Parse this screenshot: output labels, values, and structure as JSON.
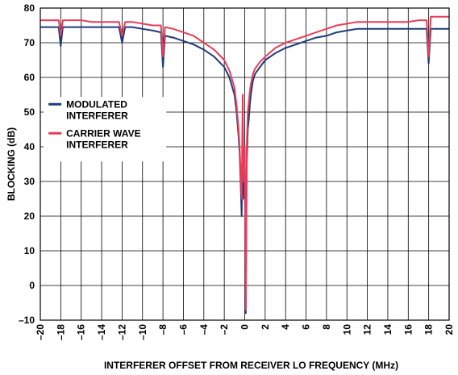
{
  "chart_data": {
    "type": "line",
    "title": "",
    "xlabel": "INTERFERER OFFSET FROM RECEIVER LO FREQUENCY (MHz)",
    "ylabel": "BLOCKING (dB)",
    "xlim": [
      -20,
      20
    ],
    "ylim": [
      -10,
      80
    ],
    "grid": true,
    "legend_position": "upper-left",
    "x_ticks": [
      -20,
      -18,
      -16,
      -14,
      -12,
      -10,
      -8,
      -6,
      -4,
      -2,
      0,
      2,
      4,
      6,
      8,
      10,
      12,
      14,
      16,
      18,
      20
    ],
    "x_tick_labels": [
      "–20",
      "–18",
      "–16",
      "–14",
      "–12",
      "–10",
      "–8",
      "–6",
      "–4",
      "–2",
      "0",
      "2",
      "4",
      "6",
      "8",
      "10",
      "12",
      "14",
      "16",
      "18",
      "20"
    ],
    "y_ticks": [
      -10,
      0,
      10,
      20,
      30,
      40,
      50,
      60,
      70,
      80
    ],
    "y_tick_labels": [
      "–10",
      "0",
      "10",
      "20",
      "30",
      "40",
      "50",
      "60",
      "70",
      "80"
    ],
    "series": [
      {
        "name": "MODULATED INTERFERER",
        "color": "#1f3a7a",
        "x": [
          -20,
          -19,
          -18.2,
          -18,
          -17.8,
          -17,
          -16,
          -15,
          -14,
          -13,
          -12.3,
          -12,
          -11.7,
          -11,
          -10,
          -9,
          -8.2,
          -8,
          -7.8,
          -7,
          -6,
          -5,
          -4,
          -3,
          -2,
          -1.5,
          -1,
          -0.8,
          -0.6,
          -0.5,
          -0.4,
          -0.3,
          -0.2,
          -0.1,
          0,
          0.1,
          0.2,
          0.3,
          0.4,
          0.5,
          0.6,
          0.8,
          1,
          1.5,
          2,
          3,
          4,
          5,
          6,
          7,
          8,
          9,
          10,
          11,
          12,
          13,
          14,
          15,
          16,
          17,
          17.8,
          18,
          18.2,
          19,
          20
        ],
        "values": [
          74.5,
          74.5,
          74.5,
          69,
          74.5,
          74.5,
          74.5,
          74.5,
          74.5,
          74.5,
          74.5,
          70,
          74.5,
          74.5,
          74,
          73.5,
          73,
          63,
          72,
          71.5,
          70.5,
          69.5,
          68,
          66,
          63,
          60,
          55,
          50,
          43,
          38,
          30,
          20,
          45,
          25,
          35,
          -8,
          35,
          45,
          48,
          52,
          55,
          59,
          61,
          63,
          65,
          67,
          68.5,
          69.5,
          70.5,
          71.5,
          72,
          73,
          73.5,
          74,
          74,
          74,
          74,
          74,
          74,
          74,
          74,
          64,
          74,
          74,
          74
        ]
      },
      {
        "name": "CARRIER WAVE INTERFERER",
        "color": "#e83c5a",
        "x": [
          -20,
          -19,
          -18.2,
          -18,
          -17.8,
          -17,
          -16,
          -15,
          -14,
          -13,
          -12.3,
          -12,
          -11.7,
          -11,
          -10,
          -9,
          -8.2,
          -8,
          -7.8,
          -7,
          -6,
          -5,
          -4,
          -3,
          -2,
          -1.5,
          -1,
          -0.8,
          -0.6,
          -0.5,
          -0.4,
          -0.3,
          -0.2,
          -0.1,
          0,
          0.1,
          0.2,
          0.3,
          0.4,
          0.5,
          0.6,
          0.8,
          1,
          1.5,
          2,
          3,
          4,
          5,
          6,
          7,
          8,
          9,
          10,
          11,
          12,
          13,
          14,
          15,
          16,
          17,
          17.8,
          18,
          18.2,
          19,
          20
        ],
        "values": [
          76.5,
          76.5,
          76.5,
          72,
          76.5,
          76.5,
          76.5,
          76,
          76,
          76,
          76,
          72,
          76,
          76,
          75.5,
          75,
          75,
          66,
          74.5,
          74,
          73,
          72,
          70,
          68,
          65,
          62,
          57,
          52,
          45,
          40,
          33,
          25,
          55,
          30,
          40,
          -7,
          40,
          50,
          53,
          56,
          58,
          61,
          62.5,
          64.5,
          66,
          68.5,
          70,
          71,
          72,
          73,
          74,
          75,
          75.5,
          76,
          76,
          76,
          76,
          76,
          76,
          76.5,
          76.5,
          66,
          77.5,
          77.5,
          77.5
        ]
      }
    ]
  }
}
